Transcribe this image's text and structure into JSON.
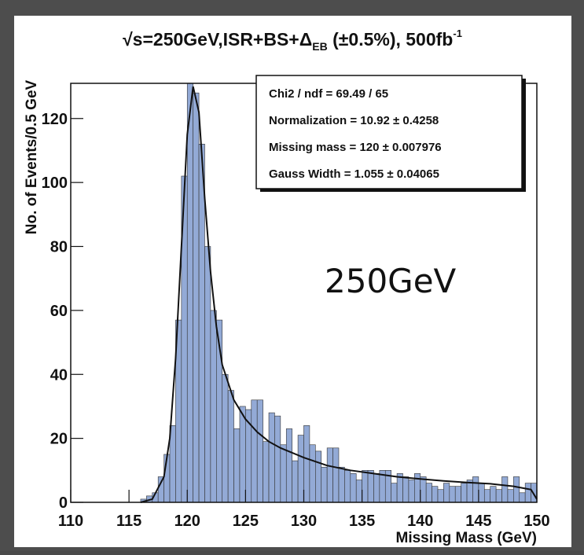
{
  "chart_data": {
    "type": "histogram",
    "title": [
      "√s=250GeV,ISR+BS+Δ",
      "EB",
      " (±0.5%), 500fb",
      "-1"
    ],
    "x_label": "Missing Mass (GeV)",
    "y_label": "No. of Events/0.5 GeV",
    "stats": [
      "Chi2 / ndf = 69.49 / 65",
      "Normalization = 10.92  ± 0.4258",
      "Missing mass =   120  ± 0.007976",
      "Gauss Width = 1.055  ± 0.04065"
    ],
    "annotation": "250GeV",
    "annotation_color": "#ff2a1a",
    "color": "#93aad6",
    "bins": [
      110,
      110.5,
      111,
      111.5,
      112,
      112.5,
      113,
      113.5,
      114,
      114.5,
      115,
      115.5,
      116,
      116.5,
      117,
      117.5,
      118,
      118.5,
      119,
      119.5,
      120,
      120.5,
      121,
      121.5,
      122,
      122.5,
      123,
      123.5,
      124,
      124.5,
      125,
      125.5,
      126,
      126.5,
      127,
      127.5,
      128,
      128.5,
      129,
      129.5,
      130,
      130.5,
      131,
      131.5,
      132,
      132.5,
      133,
      133.5,
      134,
      134.5,
      135,
      135.5,
      136,
      136.5,
      137,
      137.5,
      138,
      138.5,
      139,
      139.5,
      140,
      140.5,
      141,
      141.5,
      142,
      142.5,
      143,
      143.5,
      144,
      144.5,
      145,
      145.5,
      146,
      146.5,
      147,
      147.5,
      148,
      148.5,
      149,
      149.5,
      150
    ],
    "values": [
      0,
      0,
      0,
      0,
      0,
      0,
      0,
      0,
      0,
      0,
      0,
      0,
      1,
      2,
      3,
      8,
      15,
      24,
      57,
      102,
      131,
      128,
      112,
      80,
      60,
      57,
      40,
      35,
      23,
      30,
      29,
      32,
      32,
      19,
      28,
      27,
      18,
      23,
      13,
      21,
      24,
      18,
      16,
      11,
      17,
      17,
      11,
      10,
      9,
      7,
      10,
      10,
      9,
      10,
      10,
      6,
      9,
      8,
      7,
      9,
      8,
      6,
      5,
      4,
      6,
      5,
      5,
      6,
      7,
      8,
      6,
      4,
      5,
      4,
      8,
      4,
      8,
      3,
      6,
      6
    ],
    "fit": {
      "type": "line",
      "color": "#111111",
      "x": [
        116,
        117,
        118,
        118.5,
        119,
        119.5,
        120,
        120.5,
        121,
        121.5,
        122,
        122.5,
        123,
        124,
        125,
        126,
        127,
        128,
        130,
        132,
        134,
        136,
        138,
        140,
        142,
        144,
        146,
        148,
        149.5,
        150
      ],
      "values": [
        0,
        1,
        8,
        20,
        45,
        80,
        115,
        130,
        122,
        95,
        72,
        55,
        43,
        32,
        26,
        22,
        19,
        17,
        14,
        11.5,
        10,
        9,
        8,
        7.3,
        6.7,
        6.2,
        5.8,
        5,
        4,
        1
      ]
    },
    "xlim": [
      110,
      150
    ],
    "ylim": [
      0,
      131
    ],
    "xticks": [
      110,
      115,
      120,
      125,
      130,
      135,
      140,
      145,
      150
    ],
    "yticks": [
      0,
      20,
      40,
      60,
      80,
      100,
      120
    ]
  }
}
